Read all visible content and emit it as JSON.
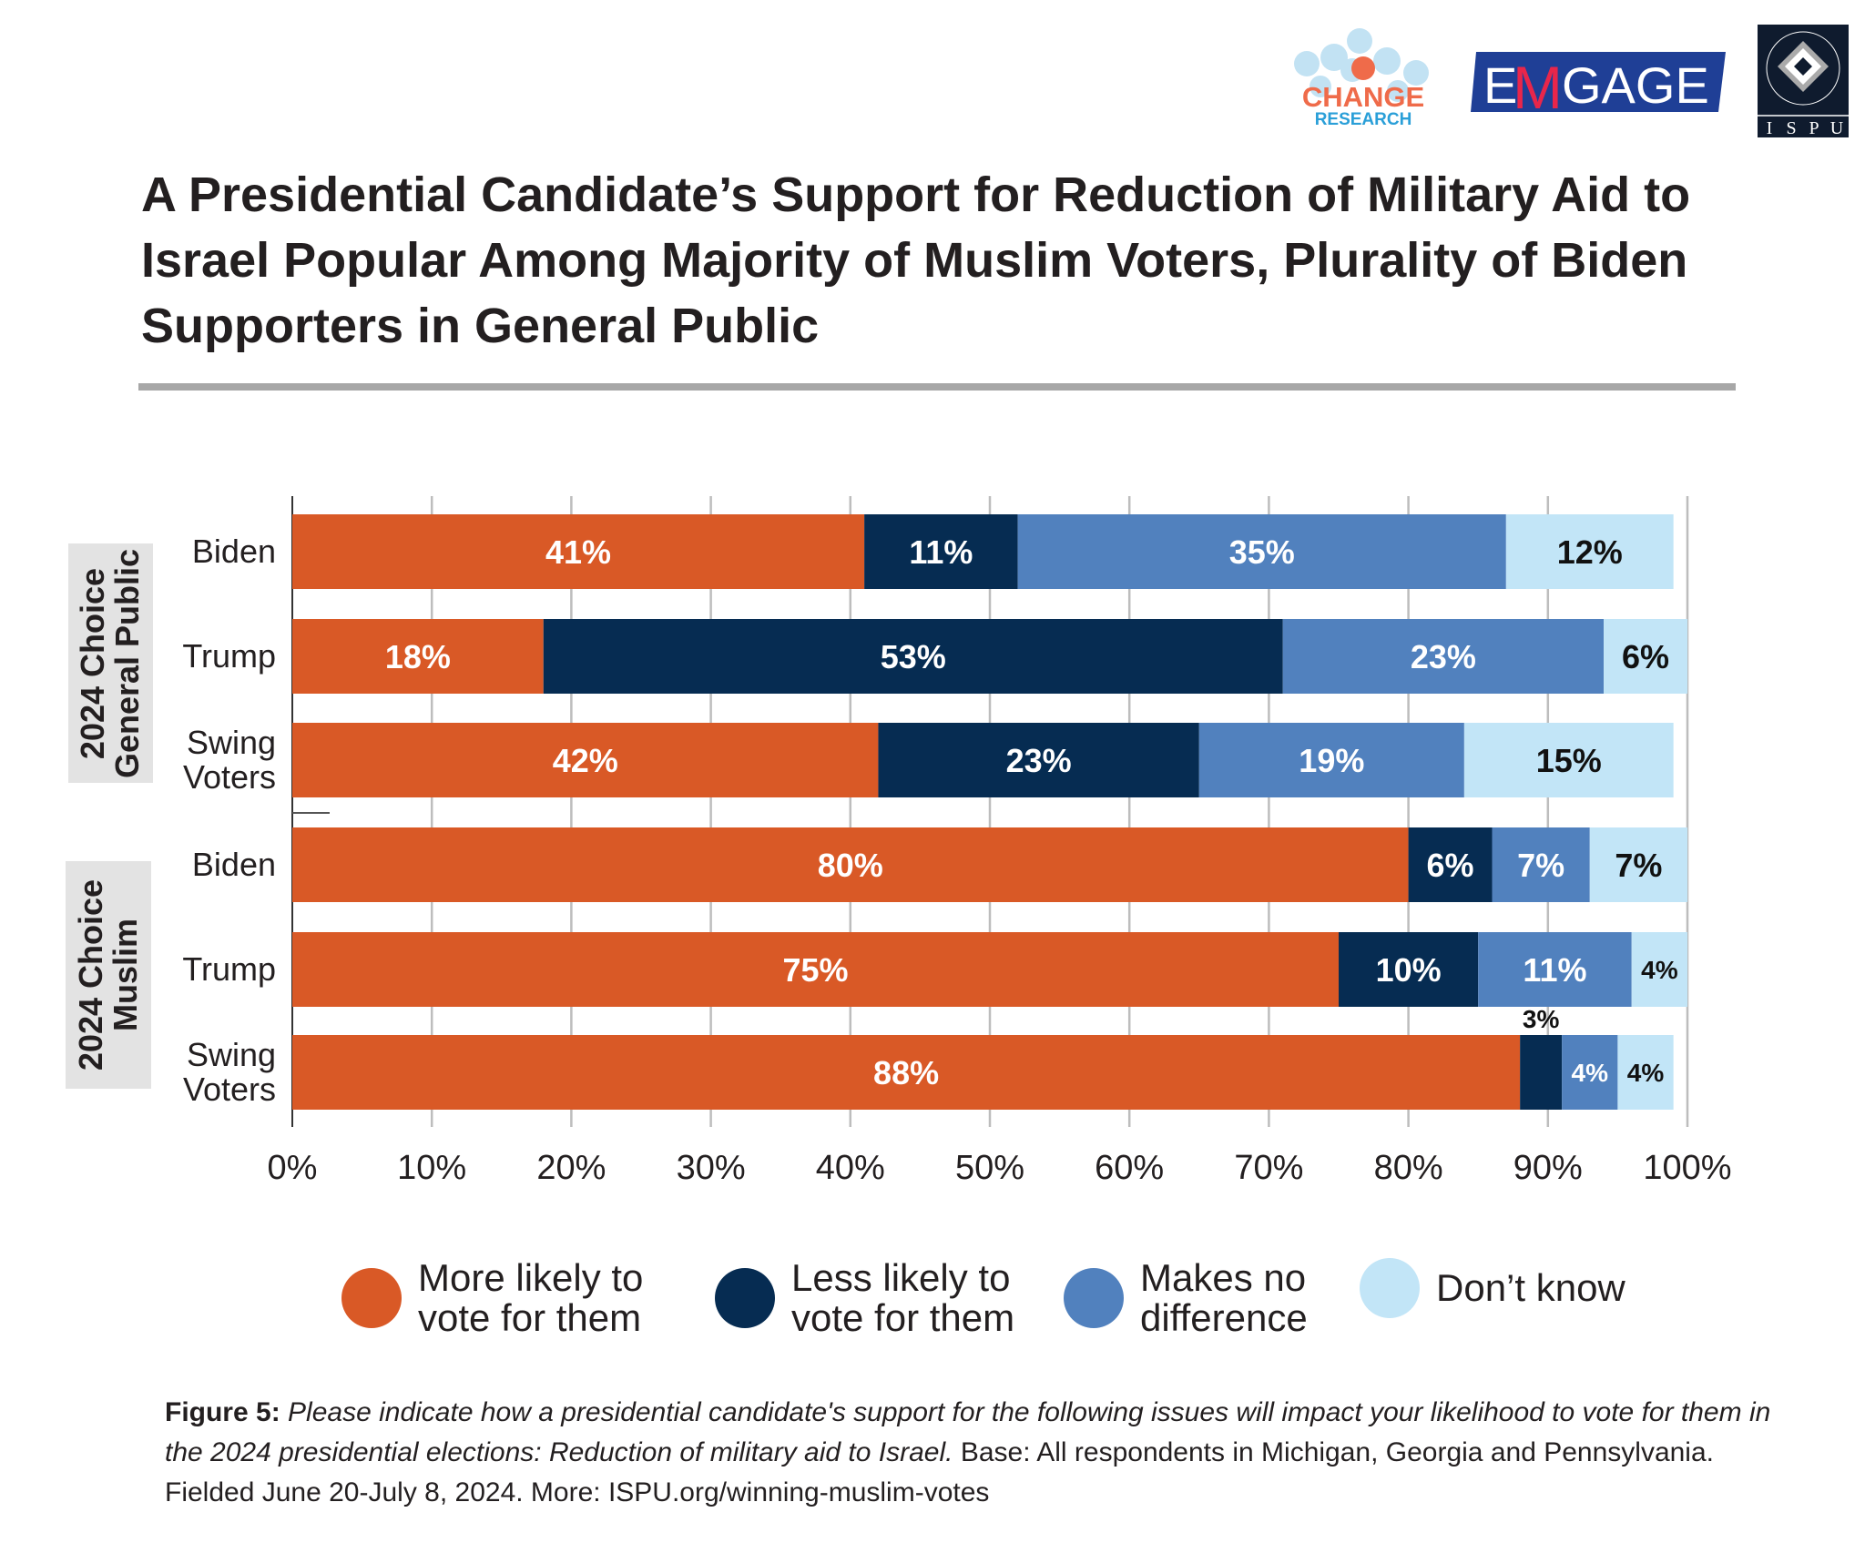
{
  "logos": {
    "change_research": {
      "line1": "CHANGE",
      "line2": "RESEARCH"
    },
    "emgage": {
      "m": "M",
      "e": "E",
      "rest": "GAGE"
    },
    "ispu": {
      "ring_text": "INSTITUTE FOR SOCIAL POLICY AND UNDERSTANDING",
      "letters": [
        "I",
        "S",
        "P",
        "U"
      ]
    }
  },
  "caption": {
    "label": "Figure 5:",
    "question": "Please indicate how a presidential candidate's support for the following issues will impact your likelihood to vote for them in the 2024 presidential elections: Reduction of military aid to Israel.",
    "base": "Base: All respondents in Michigan, Georgia and Pennsylvania. Fielded June 20-July 8, 2024. More: ISPU.org/winning-muslim-votes"
  },
  "chart_data": {
    "type": "bar",
    "orientation": "horizontal",
    "stacked": true,
    "title": "A Presidential Candidate’s Support for Reduction of Military Aid to Israel Popular Among Majority of Muslim Voters, Plurality of Biden Supporters in General Public",
    "groups": [
      {
        "label": "2024 Choice General Public",
        "categories": [
          "Biden",
          "Trump",
          "Swing Voters"
        ]
      },
      {
        "label": "2024 Choice Muslim",
        "categories": [
          "Biden",
          "Trump",
          "Swing Voters"
        ]
      }
    ],
    "categories": [
      "Biden",
      "Trump",
      "Swing Voters",
      "Biden",
      "Trump",
      "Swing Voters"
    ],
    "series": [
      {
        "name": "More likely to vote for them",
        "color": "#D95926",
        "values": [
          41,
          18,
          42,
          80,
          75,
          88
        ]
      },
      {
        "name": "Less likely to vote for them",
        "color": "#062C52",
        "values": [
          11,
          53,
          23,
          6,
          10,
          3
        ]
      },
      {
        "name": "Makes no difference",
        "color": "#5181BE",
        "values": [
          35,
          23,
          19,
          7,
          11,
          4
        ]
      },
      {
        "name": "Don’t know",
        "color": "#C2E5F7",
        "values": [
          12,
          6,
          15,
          7,
          4,
          4
        ]
      }
    ],
    "xlim": [
      0,
      100
    ],
    "xticks": [
      "0%",
      "10%",
      "20%",
      "30%",
      "40%",
      "50%",
      "60%",
      "70%",
      "80%",
      "90%",
      "100%"
    ],
    "grid": true,
    "legend_position": "bottom"
  }
}
